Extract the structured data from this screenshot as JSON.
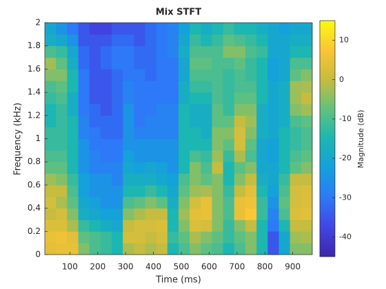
{
  "chart_data": {
    "type": "heatmap",
    "title": "Mix STFT",
    "x_label": "Time (ms)",
    "y_label": "Frequency (kHz)",
    "colorbar_label": "Magnitude (dB)",
    "x": [
      30,
      70,
      110,
      150,
      190,
      230,
      270,
      310,
      350,
      390,
      430,
      470,
      510,
      550,
      590,
      630,
      670,
      710,
      750,
      790,
      830,
      870,
      910,
      950
    ],
    "y": [
      0.05,
      0.15,
      0.25,
      0.35,
      0.45,
      0.55,
      0.65,
      0.75,
      0.85,
      0.95,
      1.05,
      1.15,
      1.25,
      1.35,
      1.45,
      1.55,
      1.65,
      1.75,
      1.85,
      1.95
    ],
    "z": [
      [
        4,
        5,
        5,
        -5,
        -10,
        -12,
        -15,
        -2,
        0,
        -2,
        0,
        -15,
        -10,
        -5,
        -8,
        -10,
        -15,
        -10,
        -5,
        -15,
        -35,
        -20,
        -5,
        -5
      ],
      [
        5,
        6,
        4,
        -8,
        -10,
        -12,
        -15,
        2,
        2,
        0,
        2,
        -12,
        -8,
        -2,
        -5,
        -8,
        -12,
        -8,
        -5,
        -15,
        -35,
        -20,
        -3,
        -2
      ],
      [
        3,
        3,
        -2,
        -12,
        -15,
        -18,
        -20,
        0,
        2,
        2,
        3,
        -15,
        -5,
        3,
        2,
        -5,
        -12,
        -5,
        0,
        -15,
        -30,
        -15,
        0,
        0
      ],
      [
        0,
        2,
        -5,
        -18,
        -20,
        -22,
        -22,
        -5,
        -2,
        0,
        0,
        -15,
        -3,
        4,
        5,
        -5,
        -10,
        5,
        8,
        -12,
        -28,
        -10,
        3,
        4
      ],
      [
        2,
        -2,
        -8,
        -20,
        -22,
        -25,
        -25,
        -10,
        -8,
        -5,
        -8,
        -18,
        -5,
        2,
        5,
        -5,
        -10,
        5,
        6,
        -12,
        -25,
        -8,
        2,
        3
      ],
      [
        0,
        0,
        -10,
        -22,
        -25,
        -25,
        -25,
        -15,
        -15,
        -12,
        -15,
        -20,
        -8,
        -3,
        -2,
        -5,
        -12,
        0,
        4,
        -15,
        -22,
        -10,
        2,
        3
      ],
      [
        -3,
        -5,
        -12,
        -22,
        -25,
        -25,
        -28,
        -18,
        -18,
        -18,
        -20,
        -22,
        -10,
        -5,
        -8,
        -5,
        -15,
        -5,
        0,
        -18,
        -20,
        -12,
        0,
        0
      ],
      [
        -8,
        -8,
        -15,
        -25,
        -28,
        -28,
        -28,
        -20,
        -22,
        -20,
        -22,
        -25,
        -15,
        -5,
        -10,
        0,
        -15,
        -8,
        -5,
        -20,
        -20,
        -15,
        -8,
        -5
      ],
      [
        -10,
        -10,
        -15,
        -25,
        -28,
        -30,
        -30,
        -22,
        -25,
        -25,
        -25,
        -25,
        -15,
        -10,
        -12,
        -3,
        -12,
        -2,
        -10,
        -20,
        -22,
        -15,
        -10,
        -8
      ],
      [
        -12,
        -12,
        -15,
        -25,
        -30,
        -30,
        -30,
        -25,
        -25,
        -25,
        -25,
        -25,
        -15,
        -15,
        -15,
        -5,
        -8,
        2,
        -8,
        -20,
        -22,
        -15,
        -12,
        -10
      ],
      [
        -12,
        -12,
        -15,
        -28,
        -30,
        -32,
        -32,
        -25,
        -28,
        -28,
        -28,
        -28,
        -15,
        -15,
        -18,
        -5,
        -5,
        2,
        -5,
        -18,
        -20,
        -15,
        -12,
        -10
      ],
      [
        -15,
        -12,
        -15,
        -28,
        -32,
        -32,
        -32,
        -25,
        -30,
        -28,
        -28,
        -28,
        -15,
        -18,
        -18,
        -8,
        -8,
        0,
        -3,
        -18,
        -20,
        -18,
        -10,
        -8
      ],
      [
        -15,
        -12,
        -18,
        -30,
        -32,
        -35,
        -32,
        -25,
        -30,
        -30,
        -28,
        -28,
        -15,
        -18,
        -18,
        -8,
        -12,
        -5,
        -5,
        -18,
        -20,
        -18,
        -5,
        -3
      ],
      [
        -12,
        -10,
        -18,
        -30,
        -35,
        -35,
        -32,
        -28,
        -30,
        -30,
        -30,
        -30,
        -18,
        -15,
        -15,
        -10,
        -12,
        -8,
        -8,
        -15,
        -20,
        -18,
        -3,
        0
      ],
      [
        -10,
        -8,
        -15,
        -30,
        -35,
        -35,
        -32,
        -28,
        -30,
        -30,
        -30,
        -30,
        -18,
        -12,
        -12,
        -10,
        -12,
        -10,
        -10,
        -15,
        -20,
        -18,
        -3,
        -2
      ],
      [
        -5,
        -5,
        -15,
        -30,
        -35,
        -35,
        -32,
        -30,
        -30,
        -32,
        -30,
        -30,
        -20,
        -10,
        -10,
        -10,
        -12,
        -10,
        -12,
        -15,
        -22,
        -20,
        -8,
        -5
      ],
      [
        -3,
        -8,
        -18,
        -32,
        -35,
        -32,
        -30,
        -30,
        -32,
        -32,
        -30,
        -30,
        -20,
        -8,
        -8,
        -10,
        -10,
        -8,
        -12,
        -15,
        -22,
        -20,
        -10,
        -10
      ],
      [
        -10,
        -12,
        -20,
        -32,
        -35,
        -32,
        -30,
        -30,
        -32,
        -32,
        -30,
        -28,
        -18,
        -10,
        -10,
        -10,
        -5,
        -5,
        -10,
        -12,
        -20,
        -20,
        -15,
        -15
      ],
      [
        -18,
        -20,
        -25,
        -35,
        -35,
        -35,
        -32,
        -32,
        -35,
        -32,
        -30,
        -28,
        -20,
        -12,
        -15,
        -12,
        -8,
        -10,
        -12,
        -15,
        -20,
        -20,
        -18,
        -18
      ],
      [
        -20,
        -25,
        -30,
        -35,
        -38,
        -38,
        -35,
        -35,
        -35,
        -32,
        -30,
        -28,
        -22,
        -15,
        -18,
        -15,
        -12,
        -15,
        -15,
        -18,
        -20,
        -22,
        -20,
        -20
      ]
    ],
    "xlim": [
      10,
      970
    ],
    "ylim": [
      0,
      2
    ],
    "xticks": [
      100,
      200,
      300,
      400,
      500,
      600,
      700,
      800,
      900
    ],
    "yticks": [
      0,
      0.2,
      0.4,
      0.6,
      0.8,
      1,
      1.2,
      1.4,
      1.6,
      1.8,
      2
    ],
    "clim": [
      -45,
      15
    ],
    "cticks": [
      -40,
      -30,
      -20,
      -10,
      0,
      10
    ],
    "colormap": [
      "#3e26a8",
      "#4145e5",
      "#2d79f8",
      "#15a0dc",
      "#1cb6b3",
      "#62c17e",
      "#c6bc3f",
      "#fbc436",
      "#f9fb0e"
    ]
  }
}
